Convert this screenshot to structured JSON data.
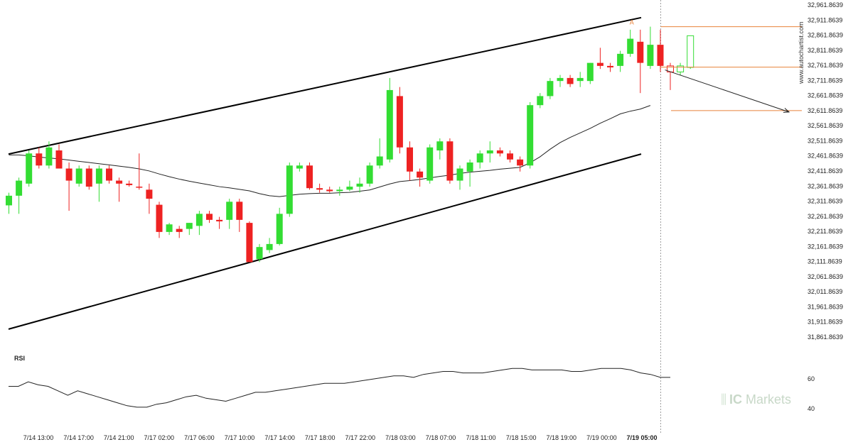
{
  "chart_data": {
    "type": "candlestick",
    "price_axis": {
      "ticks": [
        "32,961.8639",
        "32,911.8639",
        "32,861.8639",
        "32,811.8639",
        "32,761.8639",
        "32,711.8639",
        "32,661.8639",
        "32,611.8639",
        "32,561.8639",
        "32,511.8639",
        "32,461.8639",
        "32,411.8639",
        "32,361.8639",
        "32,311.8639",
        "32,261.8639",
        "32,211.8639",
        "32,161.8639",
        "32,111.8639",
        "32,061.8639",
        "32,011.8639",
        "31,961.8639",
        "31,911.8639",
        "31,861.8639"
      ],
      "min": 31861.8639,
      "max": 32961.8639
    },
    "time_axis": {
      "ticks": [
        "7/14 13:00",
        "7/14 17:00",
        "7/14 21:00",
        "7/17 02:00",
        "7/17 06:00",
        "7/17 10:00",
        "7/17 14:00",
        "7/17 18:00",
        "7/17 22:00",
        "7/18 03:00",
        "7/18 07:00",
        "7/18 11:00",
        "7/18 15:00",
        "7/18 19:00",
        "7/19 00:00",
        "7/19 05:00"
      ],
      "highlighted": "7/19 05:00"
    },
    "candles": [
      {
        "o": 32298,
        "h": 32340,
        "l": 32270,
        "c": 32330
      },
      {
        "o": 32330,
        "h": 32390,
        "l": 32270,
        "c": 32380
      },
      {
        "o": 32370,
        "h": 32480,
        "l": 32360,
        "c": 32470
      },
      {
        "o": 32470,
        "h": 32490,
        "l": 32420,
        "c": 32430
      },
      {
        "o": 32430,
        "h": 32510,
        "l": 32420,
        "c": 32490
      },
      {
        "o": 32480,
        "h": 32500,
        "l": 32420,
        "c": 32420
      },
      {
        "o": 32420,
        "h": 32440,
        "l": 32280,
        "c": 32380
      },
      {
        "o": 32370,
        "h": 32430,
        "l": 32360,
        "c": 32420
      },
      {
        "o": 32420,
        "h": 32430,
        "l": 32350,
        "c": 32360
      },
      {
        "o": 32370,
        "h": 32430,
        "l": 32310,
        "c": 32420
      },
      {
        "o": 32420,
        "h": 32430,
        "l": 32370,
        "c": 32380
      },
      {
        "o": 32380,
        "h": 32390,
        "l": 32310,
        "c": 32370
      },
      {
        "o": 32370,
        "h": 32380,
        "l": 32360,
        "c": 32365
      },
      {
        "o": 32360,
        "h": 32470,
        "l": 32350,
        "c": 32358
      },
      {
        "o": 32350,
        "h": 32370,
        "l": 32270,
        "c": 32320
      },
      {
        "o": 32300,
        "h": 32310,
        "l": 32190,
        "c": 32210
      },
      {
        "o": 32210,
        "h": 32240,
        "l": 32200,
        "c": 32235
      },
      {
        "o": 32220,
        "h": 32230,
        "l": 32190,
        "c": 32210
      },
      {
        "o": 32220,
        "h": 32240,
        "l": 32200,
        "c": 32240
      },
      {
        "o": 32230,
        "h": 32280,
        "l": 32200,
        "c": 32270
      },
      {
        "o": 32270,
        "h": 32280,
        "l": 32240,
        "c": 32250
      },
      {
        "o": 32250,
        "h": 32260,
        "l": 32220,
        "c": 32245
      },
      {
        "o": 32250,
        "h": 32320,
        "l": 32220,
        "c": 32310
      },
      {
        "o": 32310,
        "h": 32320,
        "l": 32210,
        "c": 32250
      },
      {
        "o": 32240,
        "h": 32245,
        "l": 32110,
        "c": 32110
      },
      {
        "o": 32120,
        "h": 32170,
        "l": 32110,
        "c": 32160
      },
      {
        "o": 32150,
        "h": 32190,
        "l": 32140,
        "c": 32170
      },
      {
        "o": 32170,
        "h": 32290,
        "l": 32165,
        "c": 32270
      },
      {
        "o": 32270,
        "h": 32440,
        "l": 32260,
        "c": 32430
      },
      {
        "o": 32420,
        "h": 32440,
        "l": 32410,
        "c": 32430
      },
      {
        "o": 32430,
        "h": 32440,
        "l": 32350,
        "c": 32355
      },
      {
        "o": 32355,
        "h": 32370,
        "l": 32340,
        "c": 32350
      },
      {
        "o": 32350,
        "h": 32360,
        "l": 32340,
        "c": 32345
      },
      {
        "o": 32345,
        "h": 32360,
        "l": 32330,
        "c": 32350
      },
      {
        "o": 32350,
        "h": 32380,
        "l": 32345,
        "c": 32360
      },
      {
        "o": 32360,
        "h": 32390,
        "l": 32340,
        "c": 32370
      },
      {
        "o": 32370,
        "h": 32440,
        "l": 32360,
        "c": 32430
      },
      {
        "o": 32430,
        "h": 32520,
        "l": 32420,
        "c": 32460
      },
      {
        "o": 32450,
        "h": 32720,
        "l": 32440,
        "c": 32680
      },
      {
        "o": 32660,
        "h": 32690,
        "l": 32470,
        "c": 32490
      },
      {
        "o": 32490,
        "h": 32510,
        "l": 32380,
        "c": 32410
      },
      {
        "o": 32410,
        "h": 32420,
        "l": 32360,
        "c": 32390
      },
      {
        "o": 32380,
        "h": 32500,
        "l": 32370,
        "c": 32490
      },
      {
        "o": 32480,
        "h": 32520,
        "l": 32450,
        "c": 32510
      },
      {
        "o": 32510,
        "h": 32520,
        "l": 32370,
        "c": 32380
      },
      {
        "o": 32380,
        "h": 32430,
        "l": 32350,
        "c": 32420
      },
      {
        "o": 32410,
        "h": 32450,
        "l": 32360,
        "c": 32440
      },
      {
        "o": 32440,
        "h": 32480,
        "l": 32420,
        "c": 32470
      },
      {
        "o": 32470,
        "h": 32510,
        "l": 32440,
        "c": 32480
      },
      {
        "o": 32480,
        "h": 32490,
        "l": 32460,
        "c": 32470
      },
      {
        "o": 32470,
        "h": 32480,
        "l": 32440,
        "c": 32450
      },
      {
        "o": 32450,
        "h": 32460,
        "l": 32410,
        "c": 32430
      },
      {
        "o": 32430,
        "h": 32640,
        "l": 32420,
        "c": 32630
      },
      {
        "o": 32630,
        "h": 32670,
        "l": 32620,
        "c": 32660
      },
      {
        "o": 32660,
        "h": 32720,
        "l": 32650,
        "c": 32710
      },
      {
        "o": 32710,
        "h": 32730,
        "l": 32690,
        "c": 32720
      },
      {
        "o": 32720,
        "h": 32730,
        "l": 32690,
        "c": 32700
      },
      {
        "o": 32710,
        "h": 32740,
        "l": 32690,
        "c": 32720
      },
      {
        "o": 32710,
        "h": 32770,
        "l": 32700,
        "c": 32770
      },
      {
        "o": 32770,
        "h": 32820,
        "l": 32750,
        "c": 32760
      },
      {
        "o": 32760,
        "h": 32770,
        "l": 32740,
        "c": 32755
      },
      {
        "o": 32760,
        "h": 32810,
        "l": 32740,
        "c": 32800
      },
      {
        "o": 32800,
        "h": 32880,
        "l": 32790,
        "c": 32850
      },
      {
        "o": 32840,
        "h": 32880,
        "l": 32670,
        "c": 32770
      },
      {
        "o": 32760,
        "h": 32890,
        "l": 32750,
        "c": 32830
      },
      {
        "o": 32830,
        "h": 32880,
        "l": 32740,
        "c": 32760
      }
    ],
    "projection_candles": [
      {
        "o": 32760,
        "h": 32770,
        "l": 32680,
        "c": 32740
      },
      {
        "o": 32740,
        "h": 32770,
        "l": 32730,
        "c": 32760
      },
      {
        "o": 32755,
        "h": 32860,
        "l": 32750,
        "c": 32860
      }
    ],
    "moving_average": [
      32465,
      32465,
      32462,
      32458,
      32455,
      32452,
      32448,
      32444,
      32440,
      32436,
      32432,
      32428,
      32424,
      32419,
      32412,
      32402,
      32393,
      32385,
      32378,
      32372,
      32366,
      32360,
      32356,
      32351,
      32346,
      32337,
      32330,
      32327,
      32331,
      32335,
      32337,
      32338,
      32338,
      32340,
      32341,
      32345,
      32349,
      32359,
      32369,
      32377,
      32380,
      32384,
      32389,
      32394,
      32398,
      32404,
      32408,
      32411,
      32414,
      32418,
      32421,
      32424,
      32439,
      32459,
      32484,
      32506,
      32523,
      32538,
      32553,
      32570,
      32585,
      32601,
      32610,
      32617,
      32629
    ],
    "channel": {
      "upper_start": 32468,
      "upper_end": 32920,
      "lower_start": 31888,
      "lower_end": 32468
    },
    "levels": {
      "resistance": 32890,
      "entry": 32756,
      "target": 32612
    },
    "pattern_label": "A",
    "rsi": {
      "label": "RSI",
      "ticks": [
        "60",
        "40"
      ],
      "values": [
        55,
        55,
        58,
        56,
        55,
        52,
        49,
        52,
        50,
        48,
        46,
        44,
        42,
        41,
        41,
        43,
        44,
        46,
        48,
        49,
        47,
        46,
        45,
        47,
        49,
        51,
        51,
        52,
        53,
        54,
        55,
        56,
        57,
        57,
        57,
        58,
        59,
        60,
        61,
        62,
        62,
        61,
        63,
        64,
        65,
        65,
        64,
        64,
        64,
        65,
        66,
        67,
        67,
        66,
        66,
        66,
        66,
        65,
        65,
        66,
        67,
        67,
        67,
        66,
        64,
        63,
        61,
        61
      ]
    }
  },
  "watermark": "www.autochartist.com",
  "brand": {
    "ic": "IC",
    "markets": "Markets"
  },
  "colors": {
    "up": "#33dd33",
    "down": "#ee2222",
    "level": "#e8823a"
  }
}
